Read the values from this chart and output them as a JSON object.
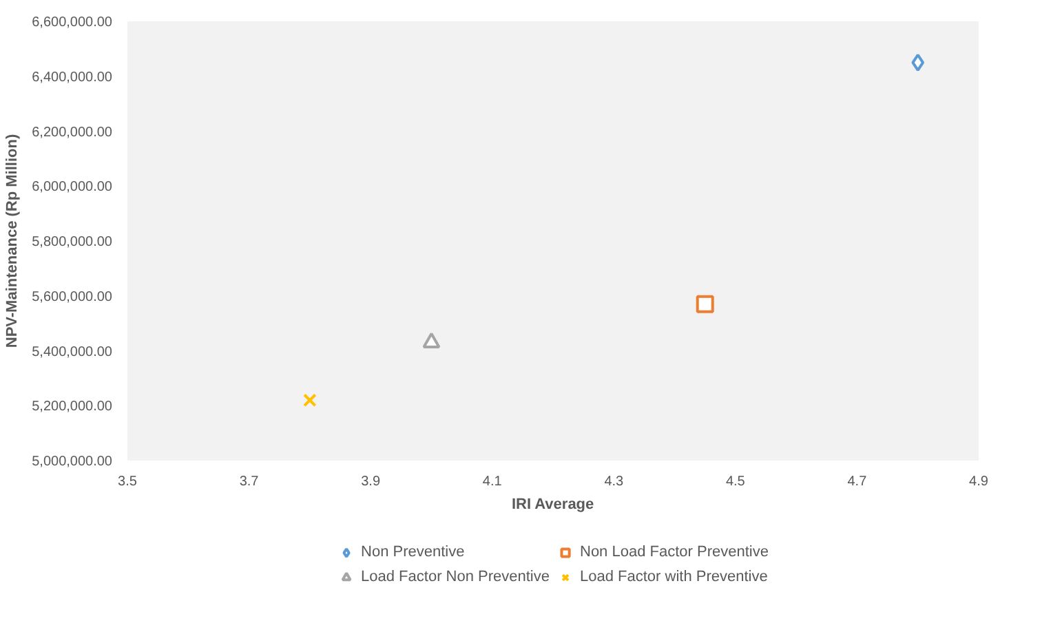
{
  "chart_data": {
    "type": "scatter",
    "xlabel": "IRI Average",
    "ylabel": "NPV-Maintenance (Rp Million)",
    "xlim": [
      3.5,
      4.9
    ],
    "xticks": [
      {
        "value": 3.5,
        "label": "3.5"
      },
      {
        "value": 3.7,
        "label": "3.7"
      },
      {
        "value": 3.9,
        "label": "3.9"
      },
      {
        "value": 4.1,
        "label": "4.1"
      },
      {
        "value": 4.3,
        "label": "4.3"
      },
      {
        "value": 4.5,
        "label": "4.5"
      },
      {
        "value": 4.7,
        "label": "4.7"
      },
      {
        "value": 4.9,
        "label": "4.9"
      }
    ],
    "ylim": [
      5000000,
      6600000
    ],
    "yticks": [
      {
        "value": 5000000,
        "label": "5,000,000.00"
      },
      {
        "value": 5200000,
        "label": "5,200,000.00"
      },
      {
        "value": 5400000,
        "label": "5,400,000.00"
      },
      {
        "value": 5600000,
        "label": "5,600,000.00"
      },
      {
        "value": 5800000,
        "label": "5,800,000.00"
      },
      {
        "value": 6000000,
        "label": "6,000,000.00"
      },
      {
        "value": 6200000,
        "label": "6,200,000.00"
      },
      {
        "value": 6400000,
        "label": "6,400,000.00"
      },
      {
        "value": 6600000,
        "label": "6,600,000.00"
      }
    ],
    "grid": false,
    "legend": "bottom",
    "series": [
      {
        "name": "Non Preventive",
        "color": "#5b9bd5",
        "marker": "diamond",
        "x": [
          4.8
        ],
        "values": [
          6450000
        ]
      },
      {
        "name": "Non Load Factor Preventive",
        "color": "#ed7d31",
        "marker": "square",
        "x": [
          4.45
        ],
        "values": [
          5570000
        ]
      },
      {
        "name": "Load Factor Non Preventive",
        "color": "#a5a5a5",
        "marker": "triangle",
        "x": [
          4.0
        ],
        "values": [
          5430000
        ]
      },
      {
        "name": "Load Factor with Preventive",
        "color": "#ffc000",
        "marker": "cross",
        "x": [
          3.8
        ],
        "values": [
          5220000
        ]
      }
    ]
  }
}
